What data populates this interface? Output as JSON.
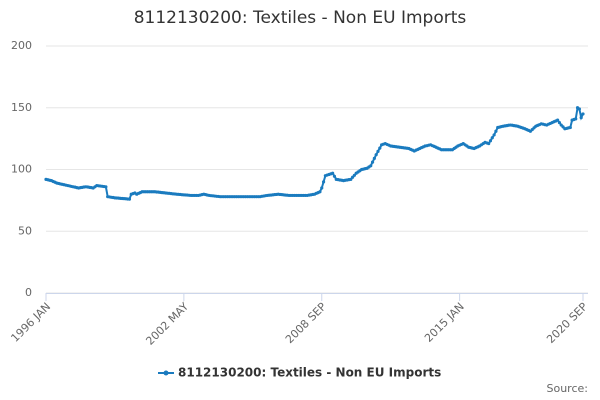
{
  "chart_data": {
    "type": "line",
    "title": "8112130200: Textiles - Non EU Imports",
    "categories": [
      "1996 JAN",
      null,
      null,
      null,
      null,
      null,
      null,
      null,
      null,
      null,
      null,
      null,
      null,
      null,
      null,
      null,
      null,
      null,
      null,
      null,
      null,
      null,
      null,
      null,
      null,
      null,
      null,
      null,
      null,
      null,
      null,
      null,
      null,
      null,
      null,
      null,
      null,
      null,
      null,
      null,
      null,
      null,
      null,
      null,
      null,
      null,
      null,
      null,
      null,
      null,
      null,
      null,
      null,
      null,
      null,
      null,
      null,
      null,
      null,
      null,
      null,
      null,
      null,
      null,
      null,
      null,
      null,
      null,
      null,
      null,
      null,
      null,
      null,
      null,
      null,
      null,
      "2002 MAY",
      null,
      null,
      null,
      null,
      null,
      null,
      null,
      null,
      null,
      null,
      null,
      null,
      null,
      null,
      null,
      null,
      null,
      null,
      null,
      null,
      null,
      null,
      null,
      null,
      null,
      null,
      null,
      null,
      null,
      null,
      null,
      null,
      null,
      null,
      null,
      null,
      null,
      null,
      null,
      null,
      null,
      null,
      null,
      null,
      null,
      null,
      null,
      null,
      null,
      null,
      null,
      null,
      null,
      null,
      null,
      null,
      null,
      null,
      null,
      null,
      null,
      null,
      null,
      null,
      null,
      null,
      null,
      null,
      null,
      null,
      null,
      null,
      null,
      null,
      null,
      "2008 SEP",
      null,
      null,
      null,
      null,
      null,
      null,
      null,
      null,
      null,
      null,
      null,
      null,
      null,
      null,
      null,
      null,
      null,
      null,
      null,
      null,
      null,
      null,
      null,
      null,
      null,
      null,
      null,
      null,
      null,
      null,
      null,
      null,
      null,
      null,
      null,
      null,
      null,
      null,
      null,
      null,
      null,
      null,
      null,
      null,
      null,
      null,
      null,
      null,
      null,
      null,
      null,
      null,
      null,
      null,
      null,
      null,
      null,
      null,
      null,
      null,
      null,
      null,
      null,
      null,
      null,
      null,
      null,
      null,
      null,
      null,
      null,
      null,
      null,
      null,
      null,
      "2015 JAN",
      null,
      null,
      null,
      null,
      null,
      null,
      null,
      null,
      null,
      null,
      null,
      null,
      null,
      null,
      null,
      null,
      null,
      null,
      null,
      null,
      null,
      null,
      null,
      null,
      null,
      null,
      null,
      null,
      null,
      null,
      null,
      null,
      null,
      null,
      null,
      null,
      null,
      null,
      null,
      null,
      null,
      null,
      null,
      null,
      null,
      null,
      null,
      null,
      null,
      null,
      null,
      null,
      null,
      null,
      null,
      null,
      null,
      null,
      null,
      null,
      null,
      null,
      null,
      null,
      null,
      null,
      null,
      "2020 SEP"
    ],
    "series": [
      {
        "name": "8112130200: Textiles - Non EU Imports",
        "color": "#1a7bbf",
        "values": [
          92,
          91.7,
          91.3,
          91,
          90.3,
          89.7,
          89,
          88.7,
          88.3,
          88,
          87.7,
          87.3,
          87,
          86.7,
          86.3,
          86,
          85.7,
          85.3,
          85,
          85.3,
          85.5,
          85.8,
          86,
          85.8,
          85.5,
          85.3,
          85,
          86,
          87,
          86.8,
          86.6,
          86.4,
          86.2,
          86,
          78,
          77.8,
          77.5,
          77.3,
          77,
          76.9,
          76.8,
          76.6,
          76.5,
          76.4,
          76.3,
          76.1,
          76,
          80,
          80.5,
          81,
          80,
          80.7,
          81.3,
          82,
          82,
          82,
          82,
          82,
          82,
          82,
          82,
          81.8,
          81.7,
          81.5,
          81.3,
          81.2,
          81,
          80.8,
          80.7,
          80.5,
          80.3,
          80.2,
          80,
          79.9,
          79.8,
          79.6,
          79.5,
          79.4,
          79.3,
          79.1,
          79,
          79,
          79,
          79,
          79,
          79.3,
          79.7,
          80,
          79.7,
          79.3,
          79,
          78.8,
          78.7,
          78.5,
          78.3,
          78.2,
          78,
          78,
          78,
          78,
          78,
          78,
          78,
          78,
          78,
          78,
          78,
          78,
          78,
          78,
          78,
          78,
          78,
          78,
          78,
          78,
          78,
          78,
          78,
          78.3,
          78.5,
          78.8,
          79,
          79.2,
          79.3,
          79.5,
          79.7,
          79.8,
          80,
          79.8,
          79.7,
          79.5,
          79.3,
          79.2,
          79,
          79,
          79,
          79,
          79,
          79,
          79,
          79,
          79,
          79,
          79,
          79.3,
          79.5,
          79.8,
          80,
          80.7,
          81.3,
          82,
          85,
          90,
          95,
          95.5,
          96,
          96.5,
          97,
          94.5,
          92,
          91.8,
          91.5,
          91.3,
          91,
          91.3,
          91.5,
          91.8,
          92,
          93.7,
          95.3,
          97,
          98,
          99,
          100,
          100.3,
          100.7,
          101,
          102,
          103,
          106,
          109,
          112,
          114.7,
          117.3,
          120,
          120.5,
          121,
          120.3,
          119.7,
          119,
          118.8,
          118.6,
          118.4,
          118.2,
          118,
          117.8,
          117.6,
          117.4,
          117.2,
          117,
          116.3,
          115.7,
          115,
          115.7,
          116.3,
          117,
          117.7,
          118.3,
          119,
          119.3,
          119.7,
          120,
          119.3,
          118.7,
          118,
          117.3,
          116.7,
          116,
          116,
          116,
          116,
          116,
          116,
          116,
          117,
          118,
          119,
          119.7,
          120.3,
          121,
          120,
          119,
          118,
          117.7,
          117.3,
          117,
          117.7,
          118.3,
          119,
          120,
          121,
          122,
          121.5,
          121,
          123.3,
          125.7,
          128,
          131,
          134,
          134.3,
          134.7,
          135,
          135.3,
          135.5,
          135.8,
          136,
          135.8,
          135.5,
          135.3,
          135,
          134.5,
          134,
          133.5,
          133,
          132.3,
          131.7,
          131,
          132.3,
          133.7,
          135,
          135.7,
          136.3,
          137,
          136.7,
          136.3,
          136,
          136.7,
          137.3,
          138,
          138.7,
          139.3,
          140,
          138,
          136,
          134.5,
          133,
          133.3,
          133.7,
          134,
          140,
          140.5,
          141,
          150,
          149,
          142,
          145
        ]
      }
    ],
    "ylim": [
      0,
      200
    ],
    "yticks": [
      0,
      50,
      100,
      150,
      200
    ],
    "grid": true,
    "legend": "bottom",
    "source": "Source:"
  }
}
